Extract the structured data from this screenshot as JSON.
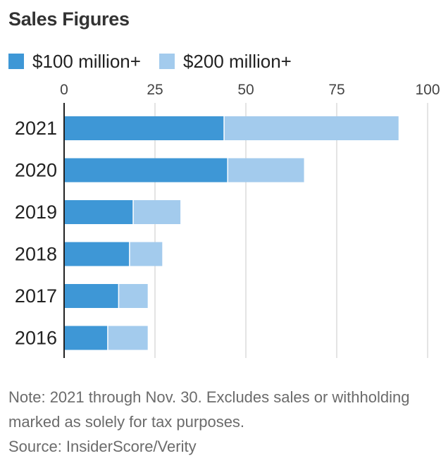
{
  "title": "Sales Figures",
  "note": "Note: 2021 through Nov. 30. Excludes sales or withholding marked as solely for tax purposes.",
  "source": "Source: InsiderScore/Verity",
  "colors": {
    "series_100": "#3e97d6",
    "series_200": "#a3cbed",
    "grid": "#dcdcdc",
    "axis": "#222222"
  },
  "chart_data": {
    "type": "bar",
    "orientation": "horizontal",
    "stacked": true,
    "categories": [
      "2021",
      "2020",
      "2019",
      "2018",
      "2017",
      "2016"
    ],
    "series": [
      {
        "name": "$100 million+",
        "values": [
          44,
          45,
          19,
          18,
          15,
          12
        ]
      },
      {
        "name": "$200 million+",
        "values": [
          48,
          21,
          13,
          9,
          8,
          11
        ]
      }
    ],
    "xlim": [
      0,
      100
    ],
    "xticks": [
      "0",
      "25",
      "50",
      "75",
      "100"
    ],
    "grid": true,
    "legend": "top-left",
    "title": "Sales Figures"
  }
}
